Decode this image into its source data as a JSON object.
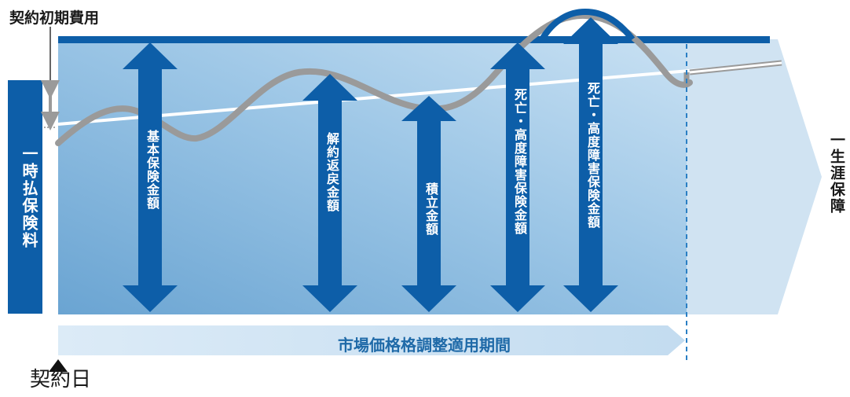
{
  "labels": {
    "initial_cost": "契約初期費用",
    "contract_date": "契約日",
    "lifetime_coverage": "一生涯保障",
    "single_premium": "一時払保険料",
    "mva_period": "市場価格格調整適用期間"
  },
  "arrows": [
    {
      "label": "基本保険金額"
    },
    {
      "label": "解約返戻金額"
    },
    {
      "label": "積立金額"
    },
    {
      "label": "死亡・高度障害保険金額"
    },
    {
      "label": "死亡・高度障害保険金額"
    }
  ],
  "colors": {
    "dark_blue": "#0d5ea8",
    "light_blue": "#bcd9ee",
    "gray_line": "#a0a0a0"
  }
}
